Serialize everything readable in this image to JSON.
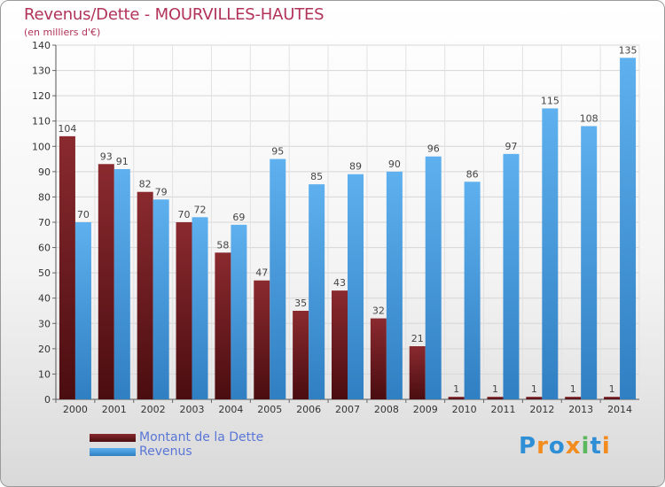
{
  "header": {
    "title": "Revenus/Dette - MOURVILLES-HAUTES",
    "subtitle": "(en milliers d'€)"
  },
  "colors": {
    "dette": "#7a1f24",
    "dette_dark": "#4a0d10",
    "revenus": "#5aa8e6",
    "revenus_dark": "#2f7fc2",
    "title": "#b2335a",
    "legend_text": "#5a76d6"
  },
  "legend": {
    "items": [
      {
        "label": "Montant de la Dette",
        "color": "#7a1f24"
      },
      {
        "label": "Revenus",
        "color": "#5aa8e6"
      }
    ]
  },
  "logo": {
    "text": "Proxiti",
    "letters": [
      "P",
      "r",
      "o",
      "x",
      "i",
      "t",
      "i"
    ],
    "letter_colors": [
      "#2f8fd6",
      "#f28c1e",
      "#2f8fd6",
      "#f28c1e",
      "#5cb85c",
      "#2f8fd6",
      "#f28c1e"
    ]
  },
  "chart_data": {
    "type": "bar",
    "title": "Revenus/Dette - MOURVILLES-HAUTES",
    "subtitle": "(en milliers d'€)",
    "xlabel": "",
    "ylabel": "",
    "categories": [
      "2000",
      "2001",
      "2002",
      "2003",
      "2004",
      "2005",
      "2006",
      "2007",
      "2008",
      "2009",
      "2010",
      "2011",
      "2012",
      "2013",
      "2014"
    ],
    "series": [
      {
        "name": "Montant de la Dette",
        "values": [
          104,
          93,
          82,
          70,
          58,
          47,
          35,
          43,
          32,
          21,
          1,
          1,
          1,
          1,
          1
        ]
      },
      {
        "name": "Revenus",
        "values": [
          70,
          91,
          79,
          72,
          69,
          95,
          85,
          89,
          90,
          96,
          86,
          97,
          115,
          108,
          135
        ]
      }
    ],
    "ylim": [
      0,
      140
    ],
    "yticks": [
      0,
      10,
      20,
      30,
      40,
      50,
      60,
      70,
      80,
      90,
      100,
      110,
      120,
      130,
      140
    ],
    "grid": true,
    "legend_position": "bottom-left",
    "data_labels": {
      "dette": [
        "104",
        "93",
        "82",
        "70",
        "58",
        "47",
        "35",
        "43",
        "32",
        "21",
        "1",
        "1",
        "1",
        "1",
        "1"
      ],
      "revenus": [
        "70",
        "91",
        "79",
        "72",
        "69",
        "95",
        "85",
        "89",
        "90",
        "96",
        "86",
        "97",
        "115",
        "108",
        "135"
      ]
    }
  }
}
